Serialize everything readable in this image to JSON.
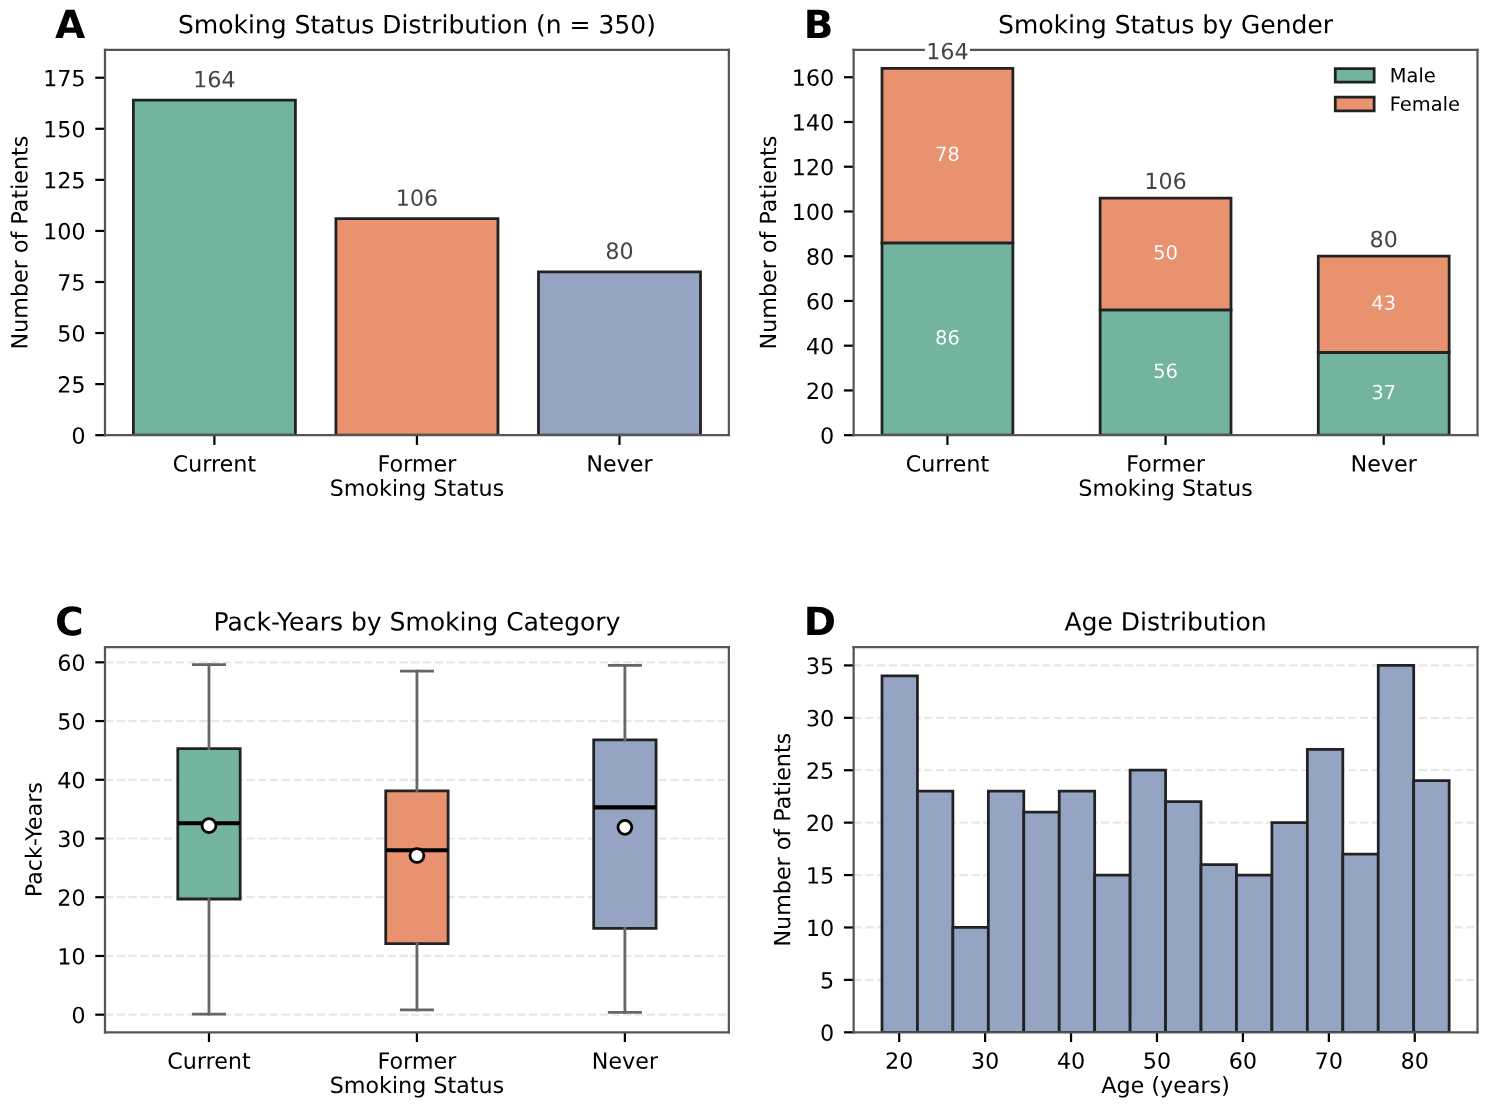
{
  "chart_data": [
    {
      "type": "bar",
      "title": "Smoking Status Distribution (n = 350)",
      "xlabel": "Smoking Status",
      "ylabel": "Number of Patients",
      "annotations": [
        "A"
      ],
      "categories": [
        "Current",
        "Former",
        "Never"
      ],
      "values": [
        164,
        106,
        80
      ],
      "colors": [
        "#72b4a0",
        "#e8926f",
        "#96a4c4"
      ],
      "ylim": [
        0,
        188.6
      ],
      "yticks": [
        0,
        25,
        50,
        75,
        100,
        125,
        150,
        175
      ],
      "data_labels": true,
      "grid": false
    },
    {
      "type": "bar",
      "stacked": true,
      "title": "Smoking Status by Gender",
      "xlabel": "Smoking Status",
      "ylabel": "Number of Patients",
      "annotations": [
        "B"
      ],
      "categories": [
        "Current",
        "Former",
        "Never"
      ],
      "series": [
        {
          "name": "Male",
          "color": "#72b4a0",
          "values": [
            86,
            56,
            37
          ]
        },
        {
          "name": "Female",
          "color": "#e8926f",
          "values": [
            78,
            50,
            43
          ]
        }
      ],
      "totals": [
        "164",
        "106",
        "80"
      ],
      "ylim": [
        0,
        172.2
      ],
      "yticks": [
        0,
        20,
        40,
        60,
        80,
        100,
        120,
        140,
        160
      ],
      "data_labels": true,
      "grid": false,
      "legend": "top right"
    },
    {
      "type": "box",
      "title": "Pack-Years by Smoking Category",
      "xlabel": "Smoking Status",
      "ylabel": "Pack-Years",
      "annotations": [
        "C"
      ],
      "categories": [
        "Current",
        "Former",
        "Never"
      ],
      "colors": [
        "#72b4a0",
        "#e8926f",
        "#96a4c4"
      ],
      "boxes": [
        {
          "low": 0.1,
          "q1": 19.7,
          "median": 32.6,
          "q3": 45.3,
          "high": 59.6,
          "mean": 32.2
        },
        {
          "low": 0.8,
          "q1": 12.1,
          "median": 28.0,
          "q3": 38.1,
          "high": 58.5,
          "mean": 27.1
        },
        {
          "low": 0.4,
          "q1": 14.7,
          "median": 35.3,
          "q3": 46.8,
          "high": 59.5,
          "mean": 31.9
        }
      ],
      "ylim": [
        -3,
        62.6
      ],
      "yticks": [
        0,
        10,
        20,
        30,
        40,
        50,
        60
      ],
      "grid": "y"
    },
    {
      "type": "histogram",
      "title": "Age Distribution",
      "xlabel": "Age (years)",
      "ylabel": "Number of Patients",
      "annotations": [
        "D"
      ],
      "color": "#96a4c4",
      "bins": [
        18,
        22.125,
        26.25,
        30.375,
        34.5,
        38.625,
        42.75,
        46.875,
        51,
        55.125,
        59.25,
        63.375,
        67.5,
        71.625,
        75.75,
        79.875,
        84
      ],
      "values": [
        34,
        23,
        10,
        23,
        21,
        23,
        15,
        25,
        22,
        16,
        15,
        20,
        27,
        17,
        35,
        24
      ],
      "xlim": [
        14.7,
        87.3
      ],
      "xticks": [
        20,
        30,
        40,
        50,
        60,
        70,
        80
      ],
      "ylim": [
        0,
        36.75
      ],
      "yticks": [
        0,
        5,
        10,
        15,
        20,
        25,
        30,
        35
      ],
      "grid": "y"
    }
  ]
}
